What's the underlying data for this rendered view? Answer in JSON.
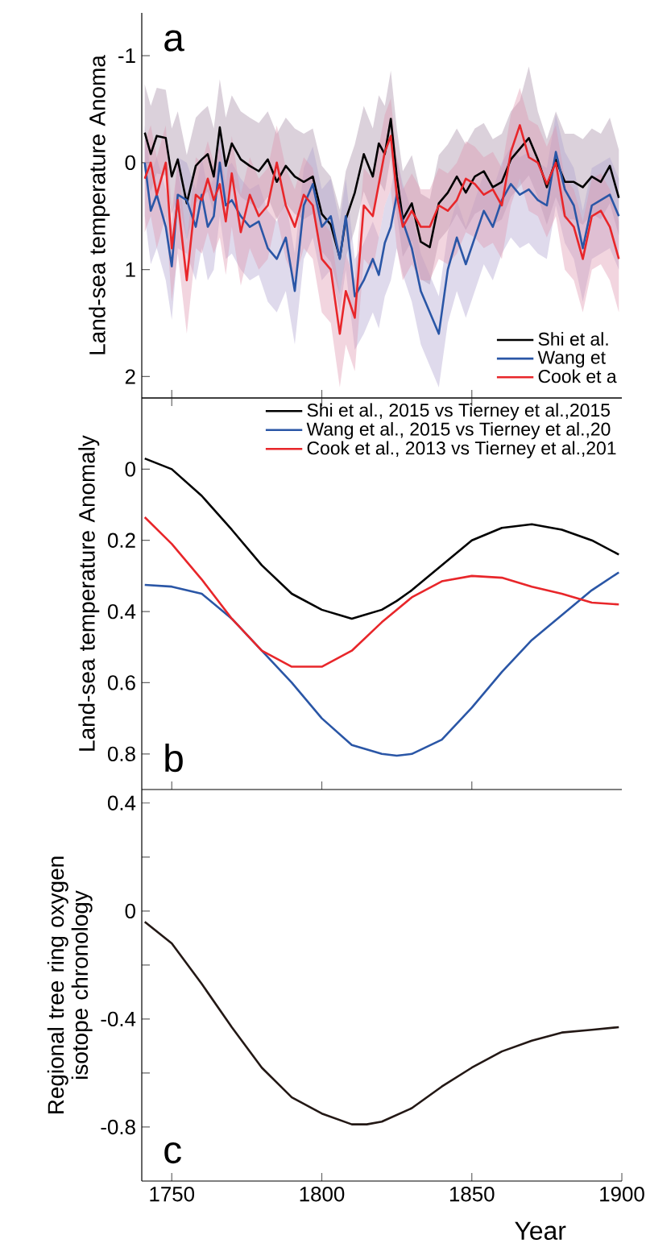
{
  "chart_data": [
    {
      "type": "line",
      "ylabel": "Land-sea temperature Anoma",
      "annotations": [
        "a"
      ],
      "legend": "bottom right",
      "tick_labels": "y",
      "x": [
        1741,
        1743,
        1745,
        1748,
        1750,
        1752,
        1755,
        1758,
        1760,
        1762,
        1764,
        1766,
        1768,
        1770,
        1773,
        1776,
        1779,
        1782,
        1785,
        1788,
        1791,
        1794,
        1797,
        1800,
        1803,
        1806,
        1808,
        1811,
        1814,
        1817,
        1819,
        1821,
        1823,
        1825,
        1827,
        1830,
        1833,
        1836,
        1839,
        1842,
        1845,
        1848,
        1851,
        1854,
        1857,
        1860,
        1863,
        1866,
        1869,
        1872,
        1875,
        1878,
        1881,
        1884,
        1887,
        1890,
        1893,
        1896,
        1899
      ],
      "xlim": [
        1740,
        1900
      ],
      "xticks": [
        1750,
        1800,
        1850
      ],
      "ylim": [
        2.2,
        -1.4
      ],
      "yticks": [
        -1,
        0,
        1,
        2
      ],
      "series": [
        {
          "name": "Shi et al.",
          "color": "#000000",
          "values": [
            -0.28,
            -0.08,
            -0.25,
            -0.23,
            0.13,
            -0.03,
            0.38,
            0.03,
            -0.03,
            -0.08,
            0.13,
            -0.33,
            0.03,
            -0.18,
            -0.03,
            0.03,
            0.08,
            -0.03,
            0.18,
            0.03,
            0.13,
            0.18,
            0.13,
            0.48,
            0.58,
            0.89,
            0.53,
            0.28,
            -0.08,
            0.13,
            -0.18,
            -0.08,
            -0.41,
            0.13,
            0.53,
            0.38,
            0.74,
            0.79,
            0.38,
            0.28,
            0.13,
            0.28,
            0.13,
            0.08,
            0.23,
            0.18,
            -0.03,
            -0.13,
            -0.23,
            -0.03,
            0.23,
            -0.03,
            0.18,
            0.18,
            0.23,
            0.13,
            0.18,
            0.03,
            0.33
          ],
          "lower": [
            -0.73,
            -0.53,
            -0.7,
            -0.68,
            -0.32,
            -0.48,
            -0.07,
            -0.42,
            -0.48,
            -0.53,
            -0.32,
            -0.78,
            -0.42,
            -0.63,
            -0.48,
            -0.42,
            -0.37,
            -0.48,
            -0.27,
            -0.42,
            -0.32,
            -0.27,
            -0.32,
            0.03,
            0.13,
            0.44,
            0.08,
            -0.17,
            -0.53,
            -0.32,
            -0.63,
            -0.53,
            -0.86,
            -0.32,
            0.08,
            -0.07,
            0.29,
            0.34,
            -0.07,
            -0.17,
            -0.32,
            -0.17,
            -0.32,
            -0.37,
            -0.22,
            -0.27,
            -0.48,
            -0.58,
            -0.9,
            -0.48,
            -0.22,
            -0.48,
            -0.27,
            -0.27,
            -0.22,
            -0.32,
            -0.27,
            -0.42,
            -0.12
          ],
          "upper": [
            0.07,
            0.27,
            0.1,
            0.12,
            0.48,
            0.32,
            0.73,
            0.38,
            0.32,
            0.27,
            0.48,
            0.02,
            0.38,
            0.17,
            0.32,
            0.38,
            0.43,
            0.32,
            0.53,
            0.38,
            0.48,
            0.53,
            0.48,
            0.83,
            0.93,
            1.24,
            0.88,
            0.63,
            0.27,
            0.48,
            0.17,
            0.27,
            -0.06,
            0.48,
            0.88,
            0.73,
            1.09,
            1.14,
            0.73,
            0.63,
            0.48,
            0.63,
            0.48,
            0.43,
            0.58,
            0.53,
            0.32,
            0.22,
            0.12,
            0.32,
            0.58,
            0.32,
            0.53,
            0.53,
            0.58,
            0.48,
            0.53,
            0.38,
            0.68
          ]
        },
        {
          "name": "Wang et",
          "color": "#2a56a6",
          "values": [
            0.0,
            0.45,
            0.3,
            0.6,
            0.97,
            0.3,
            0.35,
            0.6,
            0.3,
            0.6,
            0.5,
            0.0,
            0.4,
            0.35,
            0.5,
            0.6,
            0.55,
            0.8,
            0.9,
            0.7,
            1.2,
            0.4,
            0.2,
            0.6,
            0.5,
            0.9,
            0.5,
            1.25,
            1.1,
            0.9,
            1.05,
            0.75,
            0.6,
            0.3,
            0.55,
            0.8,
            1.2,
            1.4,
            1.6,
            1.0,
            0.7,
            0.95,
            0.7,
            0.45,
            0.6,
            0.35,
            0.2,
            0.3,
            0.25,
            0.35,
            0.4,
            -0.1,
            0.25,
            0.4,
            0.8,
            0.4,
            0.35,
            0.3,
            0.5
          ],
          "lower": [
            -0.35,
            0.1,
            -0.05,
            0.25,
            0.62,
            -0.05,
            0.0,
            0.25,
            -0.05,
            0.25,
            0.15,
            -0.35,
            0.05,
            0.0,
            0.15,
            0.25,
            0.2,
            0.45,
            0.55,
            0.35,
            0.85,
            0.05,
            -0.15,
            0.25,
            0.15,
            0.55,
            0.15,
            0.9,
            0.75,
            0.55,
            0.7,
            0.4,
            0.25,
            -0.05,
            0.2,
            0.45,
            0.85,
            1.05,
            1.25,
            0.65,
            0.35,
            0.6,
            0.35,
            0.1,
            0.25,
            0.0,
            -0.15,
            -0.05,
            -0.1,
            0.0,
            0.05,
            -0.45,
            -0.1,
            0.05,
            0.45,
            0.05,
            0.0,
            -0.05,
            0.15
          ],
          "upper": [
            0.5,
            0.95,
            0.8,
            1.1,
            1.47,
            0.8,
            0.85,
            1.1,
            0.8,
            1.1,
            1.0,
            0.5,
            0.9,
            0.85,
            1.0,
            1.1,
            1.05,
            1.3,
            1.4,
            1.2,
            1.7,
            0.9,
            0.7,
            1.1,
            1.0,
            1.4,
            1.0,
            1.75,
            1.6,
            1.4,
            1.55,
            1.25,
            1.1,
            0.8,
            1.05,
            1.3,
            1.7,
            1.9,
            2.1,
            1.5,
            1.2,
            1.45,
            1.2,
            0.95,
            1.1,
            0.85,
            0.7,
            0.8,
            0.75,
            0.85,
            0.9,
            0.4,
            0.75,
            0.9,
            1.3,
            0.9,
            0.85,
            0.8,
            1.0
          ]
        },
        {
          "name": "Cook et a",
          "color": "#e8262a",
          "values": [
            0.15,
            0.0,
            0.3,
            0.0,
            0.8,
            0.35,
            1.1,
            0.3,
            0.35,
            0.15,
            0.35,
            0.2,
            0.55,
            0.1,
            0.65,
            0.3,
            0.5,
            0.4,
            0.0,
            0.4,
            0.6,
            0.3,
            0.4,
            0.9,
            1.0,
            1.6,
            1.2,
            1.45,
            0.4,
            0.5,
            0.2,
            -0.1,
            -0.25,
            0.3,
            0.6,
            0.45,
            0.6,
            0.6,
            0.4,
            0.45,
            0.35,
            0.15,
            0.2,
            0.3,
            0.25,
            0.4,
            -0.1,
            -0.35,
            -0.05,
            0.0,
            0.2,
            0.0,
            0.5,
            0.6,
            0.9,
            0.5,
            0.45,
            0.6,
            0.9
          ],
          "lower": [
            -0.2,
            -0.35,
            -0.05,
            -0.35,
            0.45,
            0.0,
            0.75,
            -0.05,
            0.0,
            -0.2,
            0.0,
            -0.15,
            0.2,
            -0.25,
            0.3,
            -0.05,
            0.15,
            0.05,
            -0.35,
            0.05,
            0.25,
            -0.05,
            0.05,
            0.55,
            0.65,
            1.25,
            0.85,
            1.1,
            0.05,
            0.15,
            -0.15,
            -0.45,
            -0.6,
            -0.05,
            0.25,
            0.1,
            0.25,
            0.25,
            0.05,
            0.1,
            0.0,
            -0.2,
            -0.15,
            -0.05,
            -0.1,
            0.05,
            -0.45,
            -0.7,
            -0.4,
            -0.35,
            -0.15,
            -0.35,
            0.15,
            0.25,
            0.55,
            0.15,
            0.1,
            0.25,
            0.55
          ],
          "upper": [
            0.65,
            0.5,
            0.8,
            0.5,
            1.3,
            0.85,
            1.6,
            0.8,
            0.85,
            0.65,
            0.85,
            0.7,
            1.05,
            0.6,
            1.15,
            0.8,
            1.0,
            0.9,
            0.5,
            0.9,
            1.1,
            0.8,
            0.9,
            1.4,
            1.5,
            2.1,
            1.7,
            1.95,
            0.9,
            1.0,
            0.7,
            0.4,
            0.25,
            0.8,
            1.1,
            0.95,
            1.1,
            1.1,
            0.9,
            0.95,
            0.85,
            0.65,
            0.7,
            0.8,
            0.75,
            0.9,
            0.4,
            0.15,
            0.45,
            0.5,
            0.7,
            0.5,
            1.0,
            1.1,
            1.4,
            1.0,
            0.95,
            1.1,
            1.4
          ]
        }
      ]
    },
    {
      "type": "line",
      "ylabel": "Land-sea temperature Anomaly",
      "annotations": [
        "b"
      ],
      "legend": "top right",
      "tick_labels": "y",
      "x": [
        1741,
        1750,
        1760,
        1770,
        1780,
        1790,
        1800,
        1810,
        1820,
        1825,
        1830,
        1840,
        1850,
        1860,
        1870,
        1880,
        1890,
        1899
      ],
      "xlim": [
        1740,
        1900
      ],
      "xticks": [
        1750,
        1800,
        1850
      ],
      "ylim": [
        0.9,
        -0.2
      ],
      "yticks": [
        0,
        0.2,
        0.4,
        0.6,
        0.8
      ],
      "series": [
        {
          "name": "Shi et al., 2015  vs Tierney et al.,2015",
          "color": "#000000",
          "values": [
            -0.03,
            0.0,
            0.075,
            0.17,
            0.27,
            0.35,
            0.395,
            0.42,
            0.395,
            0.37,
            0.34,
            0.27,
            0.2,
            0.165,
            0.155,
            0.17,
            0.2,
            0.24
          ]
        },
        {
          "name": "Wang et al., 2015  vs Tierney et al.,20",
          "color": "#2a56a6",
          "values": [
            0.325,
            0.33,
            0.35,
            0.42,
            0.51,
            0.6,
            0.7,
            0.775,
            0.8,
            0.805,
            0.8,
            0.76,
            0.67,
            0.57,
            0.48,
            0.41,
            0.34,
            0.29
          ]
        },
        {
          "name": "Cook et al., 2013 vs Tierney et al.,201",
          "color": "#e8262a",
          "values": [
            0.135,
            0.21,
            0.31,
            0.42,
            0.51,
            0.555,
            0.555,
            0.51,
            0.43,
            0.395,
            0.36,
            0.315,
            0.3,
            0.305,
            0.33,
            0.35,
            0.375,
            0.38
          ]
        }
      ]
    },
    {
      "type": "line",
      "ylabel": "Regional tree ring oxygen isotope chronology",
      "xlabel": "Year",
      "annotations": [
        "c"
      ],
      "x": [
        1741,
        1750,
        1760,
        1770,
        1780,
        1790,
        1800,
        1810,
        1815,
        1820,
        1830,
        1840,
        1850,
        1860,
        1870,
        1880,
        1890,
        1899
      ],
      "xlim": [
        1740,
        1900
      ],
      "xticks": [
        1750,
        1800,
        1850,
        1900
      ],
      "ylim": [
        -1.0,
        0.45
      ],
      "yticks": [
        {
          "value": -0.8,
          "label": "-0.8"
        },
        {
          "value": -0.6,
          "label": null
        },
        {
          "value": -0.4,
          "label": "-0.4"
        },
        {
          "value": -0.2,
          "label": null
        },
        0,
        {
          "value": 0.2,
          "label": null
        },
        {
          "value": 0.4,
          "label": "0.4"
        }
      ],
      "series": [
        {
          "color": "#231815",
          "values": [
            -0.04,
            -0.12,
            -0.27,
            -0.43,
            -0.58,
            -0.69,
            -0.75,
            -0.79,
            -0.79,
            -0.78,
            -0.73,
            -0.65,
            -0.58,
            -0.52,
            -0.48,
            -0.45,
            -0.44,
            -0.43
          ]
        }
      ]
    }
  ]
}
